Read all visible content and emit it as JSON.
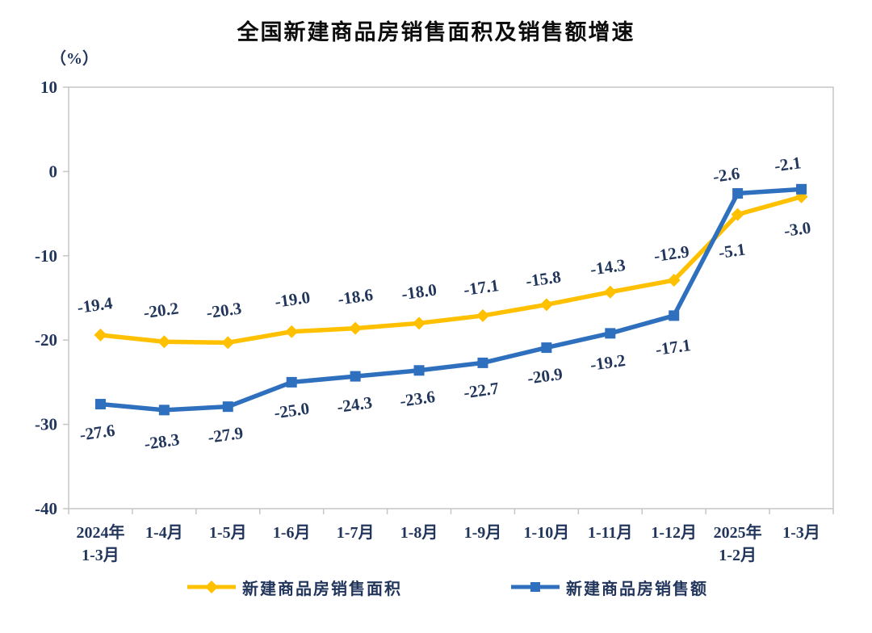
{
  "title": "全国新建商品房销售面积及销售额增速",
  "y_axis_unit": "（%）",
  "chart_data": {
    "type": "line",
    "title": "全国新建商品房销售面积及销售额增速",
    "ylabel": "（%）",
    "ylim": [
      -40,
      10
    ],
    "y_ticks": [
      10,
      0,
      -10,
      -20,
      -30,
      -40
    ],
    "grid": false,
    "legend_position": "bottom",
    "categories": [
      [
        "2024年",
        "1-3月"
      ],
      [
        "1-4月"
      ],
      [
        "1-5月"
      ],
      [
        "1-6月"
      ],
      [
        "1-7月"
      ],
      [
        "1-8月"
      ],
      [
        "1-9月"
      ],
      [
        "1-10月"
      ],
      [
        "1-11月"
      ],
      [
        "1-12月"
      ],
      [
        "2025年",
        "1-2月"
      ],
      [
        "1-3月"
      ]
    ],
    "series": [
      {
        "name": "新建商品房销售面积",
        "color": "#FFC000",
        "marker": "diamond",
        "values": [
          -19.4,
          -20.2,
          -20.3,
          -19.0,
          -18.6,
          -18.0,
          -17.1,
          -15.8,
          -14.3,
          -12.9,
          -5.1,
          -3.0
        ],
        "label_offsets": [
          [
            -6,
            -37
          ],
          [
            -3,
            -39
          ],
          [
            -4,
            -40
          ],
          [
            2,
            -40
          ],
          [
            1,
            -39
          ],
          [
            1,
            -39
          ],
          [
            -1,
            -35
          ],
          [
            -3,
            -32
          ],
          [
            -2,
            -31
          ],
          [
            -2,
            -33
          ],
          [
            -6,
            45
          ],
          [
            -4,
            40
          ]
        ]
      },
      {
        "name": "新建商品房销售额",
        "color": "#2E6FBE",
        "marker": "square",
        "values": [
          -27.6,
          -28.3,
          -27.9,
          -25.0,
          -24.3,
          -23.6,
          -22.7,
          -20.9,
          -19.2,
          -17.1,
          -2.6,
          -2.1
        ],
        "label_offsets": [
          [
            -3,
            35
          ],
          [
            -2,
            39
          ],
          [
            -2,
            35
          ],
          [
            1,
            35
          ],
          [
            0,
            35
          ],
          [
            -1,
            35
          ],
          [
            -1,
            34
          ],
          [
            -1,
            35
          ],
          [
            -2,
            36
          ],
          [
            0,
            39
          ],
          [
            -13,
            -23
          ],
          [
            -16,
            -31
          ]
        ]
      }
    ],
    "style": {
      "text_color": "#22365c",
      "border_color": "#c6c6c6",
      "label_rotation_deg": -8
    }
  },
  "legend": {
    "items": [
      {
        "label": "新建商品房销售面积"
      },
      {
        "label": "新建商品房销售额"
      }
    ]
  }
}
